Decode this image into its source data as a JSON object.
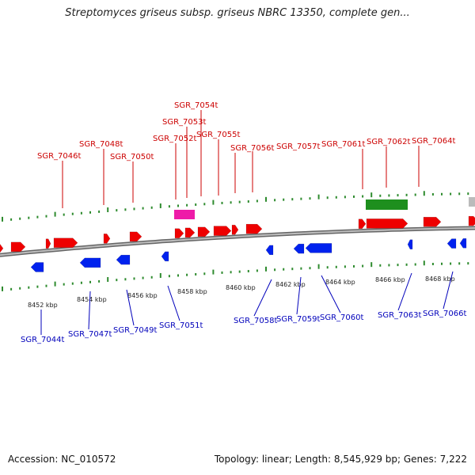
{
  "title": "Streptomyces griseus subsp. griseus NBRC 13350, complete gen...",
  "footer": {
    "accession": "Accession: NC_010572",
    "topology": "Topology: linear; Length: 8,545,929 bp; Genes: 7,222"
  },
  "colors": {
    "forward_gene": "#ee0000",
    "reverse_gene": "#0022ee",
    "rrna": "#ee1ba8",
    "green_feature": "#1e8f1e",
    "gray_feature": "#bbbbbb",
    "forward_label": "#cc0000",
    "reverse_label": "#0000bb",
    "tick": "#2e8b2e",
    "backbone": "#888888"
  },
  "scale_labels": [
    "8452 kbp",
    "8454 kbp",
    "8456 kbp",
    "8458 kbp",
    "8460 kbp",
    "8462 kbp",
    "8464 kbp",
    "8466 kbp",
    "8468 kbp"
  ],
  "top_labels": [
    "SGR_7046t",
    "SGR_7048t",
    "SGR_7050t",
    "SGR_7052t",
    "SGR_7053t",
    "SGR_7054t",
    "SGR_7055t",
    "SGR_7056t",
    "SGR_7057t",
    "SGR_7061t",
    "SGR_7062t",
    "SGR_7064t"
  ],
  "bottom_labels": [
    "SGR_7044t",
    "SGR_7047t",
    "SGR_7049t",
    "SGR_7051t",
    "SGR_7058t",
    "SGR_7059t",
    "SGR_7060t",
    "SGR_7063t",
    "SGR_7066t"
  ]
}
